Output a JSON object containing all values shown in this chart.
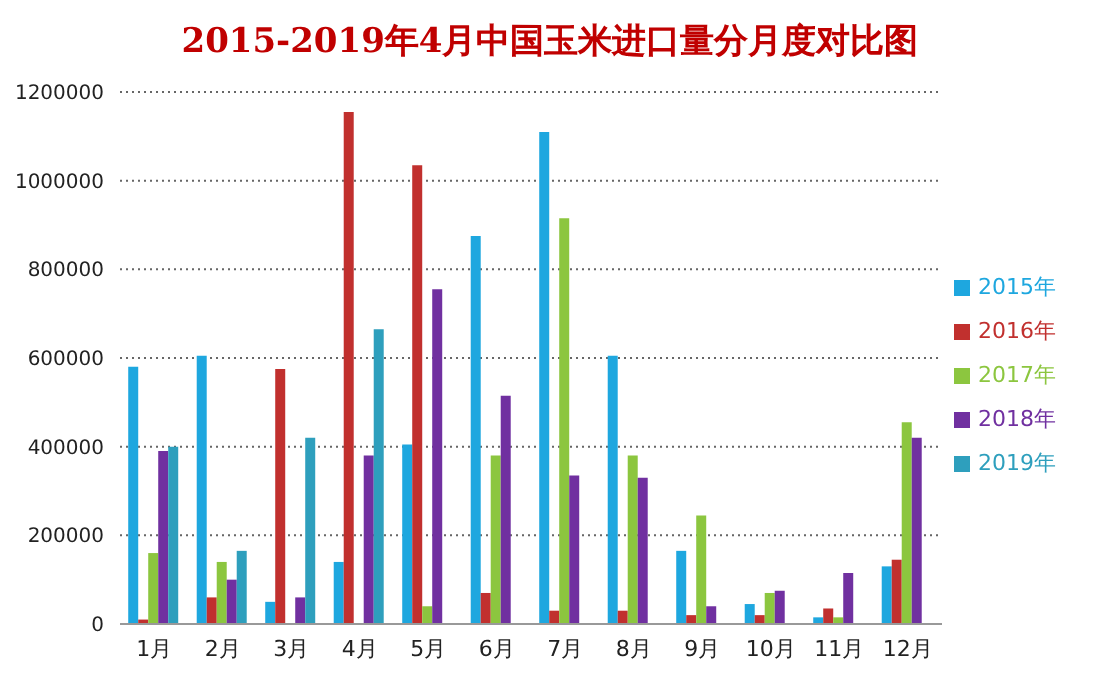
{
  "chart_data": {
    "type": "bar",
    "title": "2015-2019年4月中国玉米进口量分月度对比图",
    "categories": [
      "1月",
      "2月",
      "3月",
      "4月",
      "5月",
      "6月",
      "7月",
      "8月",
      "9月",
      "10月",
      "11月",
      "12月"
    ],
    "series": [
      {
        "name": "2015年",
        "color": "#1ea7df",
        "values": [
          580000,
          605000,
          50000,
          140000,
          405000,
          875000,
          1110000,
          605000,
          165000,
          45000,
          15000,
          130000
        ]
      },
      {
        "name": "2016年",
        "color": "#c1302e",
        "values": [
          10000,
          60000,
          575000,
          1155000,
          1035000,
          70000,
          30000,
          30000,
          20000,
          20000,
          35000,
          145000
        ]
      },
      {
        "name": "2017年",
        "color": "#8cc63f",
        "values": [
          160000,
          140000,
          0,
          0,
          40000,
          380000,
          915000,
          380000,
          245000,
          70000,
          15000,
          455000
        ]
      },
      {
        "name": "2018年",
        "color": "#7030a0",
        "values": [
          390000,
          100000,
          60000,
          380000,
          755000,
          515000,
          335000,
          330000,
          40000,
          75000,
          115000,
          420000
        ]
      },
      {
        "name": "2019年",
        "color": "#2e9fbd",
        "values": [
          400000,
          165000,
          420000,
          665000,
          null,
          null,
          null,
          null,
          null,
          null,
          null,
          null
        ]
      }
    ],
    "ylim": [
      0,
      1200000
    ],
    "yticks": [
      0,
      200000,
      400000,
      600000,
      800000,
      1000000,
      1200000
    ],
    "grid": "y",
    "legend": "right"
  }
}
